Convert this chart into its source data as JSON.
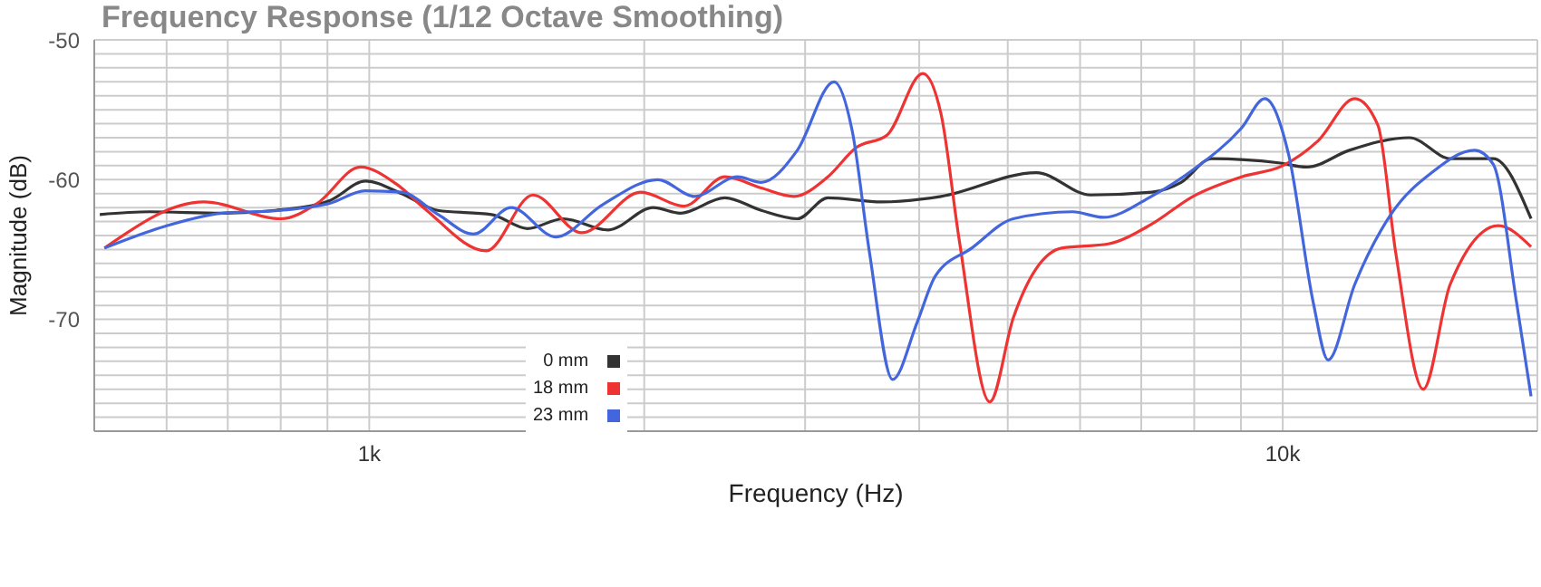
{
  "chart_data": {
    "type": "line",
    "title": "Frequency Response (1/12 Octave Smoothing)",
    "xlabel": "Frequency (Hz)",
    "ylabel": "Magnitude (dB)",
    "log": "x",
    "grid": true,
    "legend": "bottom left",
    "marker": "none",
    "line_style": "solid",
    "xlim": [
      500,
      19000
    ],
    "xticks": [
      {
        "value": 600,
        "label": null
      },
      {
        "value": 700,
        "label": null
      },
      {
        "value": 800,
        "label": null
      },
      {
        "value": 900,
        "label": null
      },
      {
        "value": 1000,
        "label": "1k"
      },
      {
        "value": 2000,
        "label": null
      },
      {
        "value": 3000,
        "label": null
      },
      {
        "value": 4000,
        "label": null
      },
      {
        "value": 5000,
        "label": null
      },
      {
        "value": 6000,
        "label": null
      },
      {
        "value": 7000,
        "label": null
      },
      {
        "value": 8000,
        "label": null
      },
      {
        "value": 9000,
        "label": null
      },
      {
        "value": 10000,
        "label": "10k"
      }
    ],
    "ylim": [
      -78,
      -50
    ],
    "yticks": [
      {
        "value": -78,
        "label": null
      },
      {
        "value": -77,
        "label": null
      },
      {
        "value": -76,
        "label": null
      },
      {
        "value": -75,
        "label": null
      },
      {
        "value": -74,
        "label": null
      },
      {
        "value": -73,
        "label": null
      },
      {
        "value": -72,
        "label": null
      },
      {
        "value": -71,
        "label": null
      },
      -70,
      {
        "value": -69,
        "label": null
      },
      {
        "value": -68,
        "label": null
      },
      {
        "value": -67,
        "label": null
      },
      {
        "value": -66,
        "label": null
      },
      {
        "value": -65,
        "label": null
      },
      {
        "value": -64,
        "label": null
      },
      {
        "value": -63,
        "label": null
      },
      {
        "value": -62,
        "label": null
      },
      {
        "value": -61,
        "label": null
      },
      -60,
      {
        "value": -59,
        "label": null
      },
      {
        "value": -58,
        "label": null
      },
      {
        "value": -57,
        "label": null
      },
      {
        "value": -56,
        "label": null
      },
      {
        "value": -55,
        "label": null
      },
      {
        "value": -54,
        "label": null
      },
      {
        "value": -53,
        "label": null
      },
      {
        "value": -52,
        "label": null
      },
      {
        "value": -51,
        "label": null
      },
      -50
    ],
    "series": [
      {
        "name": "0 mm",
        "color": "#333333",
        "x": [
          507,
          575,
          690,
          790,
          905,
          991,
          1085,
          1188,
          1361,
          1490,
          1631,
          1826,
          2046,
          2190,
          2451,
          2686,
          2942,
          3177,
          3641,
          4226,
          5375,
          6160,
          7193,
          7740,
          8359,
          9894,
          10630,
          11830,
          13760,
          15270,
          17000,
          18700
        ],
        "values": [
          -62.5,
          -62.3,
          -62.4,
          -62.2,
          -61.5,
          -60.1,
          -61,
          -62.2,
          -62.5,
          -63.5,
          -62.8,
          -63.6,
          -62,
          -62.4,
          -61.3,
          -62.2,
          -62.8,
          -61.3,
          -61.6,
          -61.2,
          -59.5,
          -61.1,
          -60.9,
          -60.2,
          -58.5,
          -58.8,
          -59.1,
          -57.9,
          -57,
          -58.5,
          -58.5,
          -62.8
        ]
      },
      {
        "name": "18 mm",
        "color": "#ee3333",
        "x": [
          513,
          659,
          801,
          877,
          978,
          1070,
          1151,
          1343,
          1511,
          1708,
          1983,
          2210,
          2452,
          2686,
          2915,
          3177,
          3414,
          3690,
          4036,
          4226,
          4424,
          4778,
          5070,
          5727,
          6443,
          7180,
          7975,
          9015,
          10000,
          10940,
          11990,
          12710,
          13300,
          14250,
          15250,
          17220,
          18700
        ],
        "values": [
          -64.9,
          -61.6,
          -62.8,
          -61.7,
          -59.1,
          -60.3,
          -62.1,
          -65.1,
          -61.1,
          -63.8,
          -60.9,
          -61.9,
          -59.8,
          -60.6,
          -61.2,
          -59.8,
          -57.7,
          -56.8,
          -52.4,
          -55.3,
          -64.3,
          -75.9,
          -69.9,
          -64.9,
          -64.6,
          -63.2,
          -61.2,
          -59.8,
          -59,
          -57.2,
          -54.2,
          -56.1,
          -65.3,
          -75,
          -67.5,
          -63.3,
          -64.8
        ]
      },
      {
        "name": "23 mm",
        "color": "#4466dd",
        "x": [
          513,
          600,
          690,
          800,
          905,
          990,
          1085,
          1190,
          1300,
          1430,
          1600,
          1800,
          2070,
          2270,
          2530,
          2686,
          2942,
          3227,
          3378,
          3530,
          3740,
          3980,
          4166,
          4566,
          5070,
          5887,
          6360,
          7180,
          7975,
          9015,
          9560,
          10150,
          10800,
          11210,
          11990,
          13130,
          14560,
          16220,
          17000,
          18030,
          18700
        ],
        "values": [
          -64.9,
          -63.3,
          -62.4,
          -62.2,
          -61.7,
          -60.8,
          -60.9,
          -62.5,
          -63.9,
          -62,
          -64.1,
          -61.8,
          -60,
          -61.2,
          -59.8,
          -60.2,
          -57.9,
          -53,
          -56.5,
          -65.3,
          -74.3,
          -70.2,
          -66.9,
          -64.9,
          -62.8,
          -62.3,
          -62.7,
          -61.2,
          -59.3,
          -56.3,
          -54.2,
          -58.2,
          -68.8,
          -72.9,
          -67.5,
          -62.5,
          -59.5,
          -57.9,
          -58.9,
          -68.8,
          -75.5
        ]
      }
    ]
  }
}
